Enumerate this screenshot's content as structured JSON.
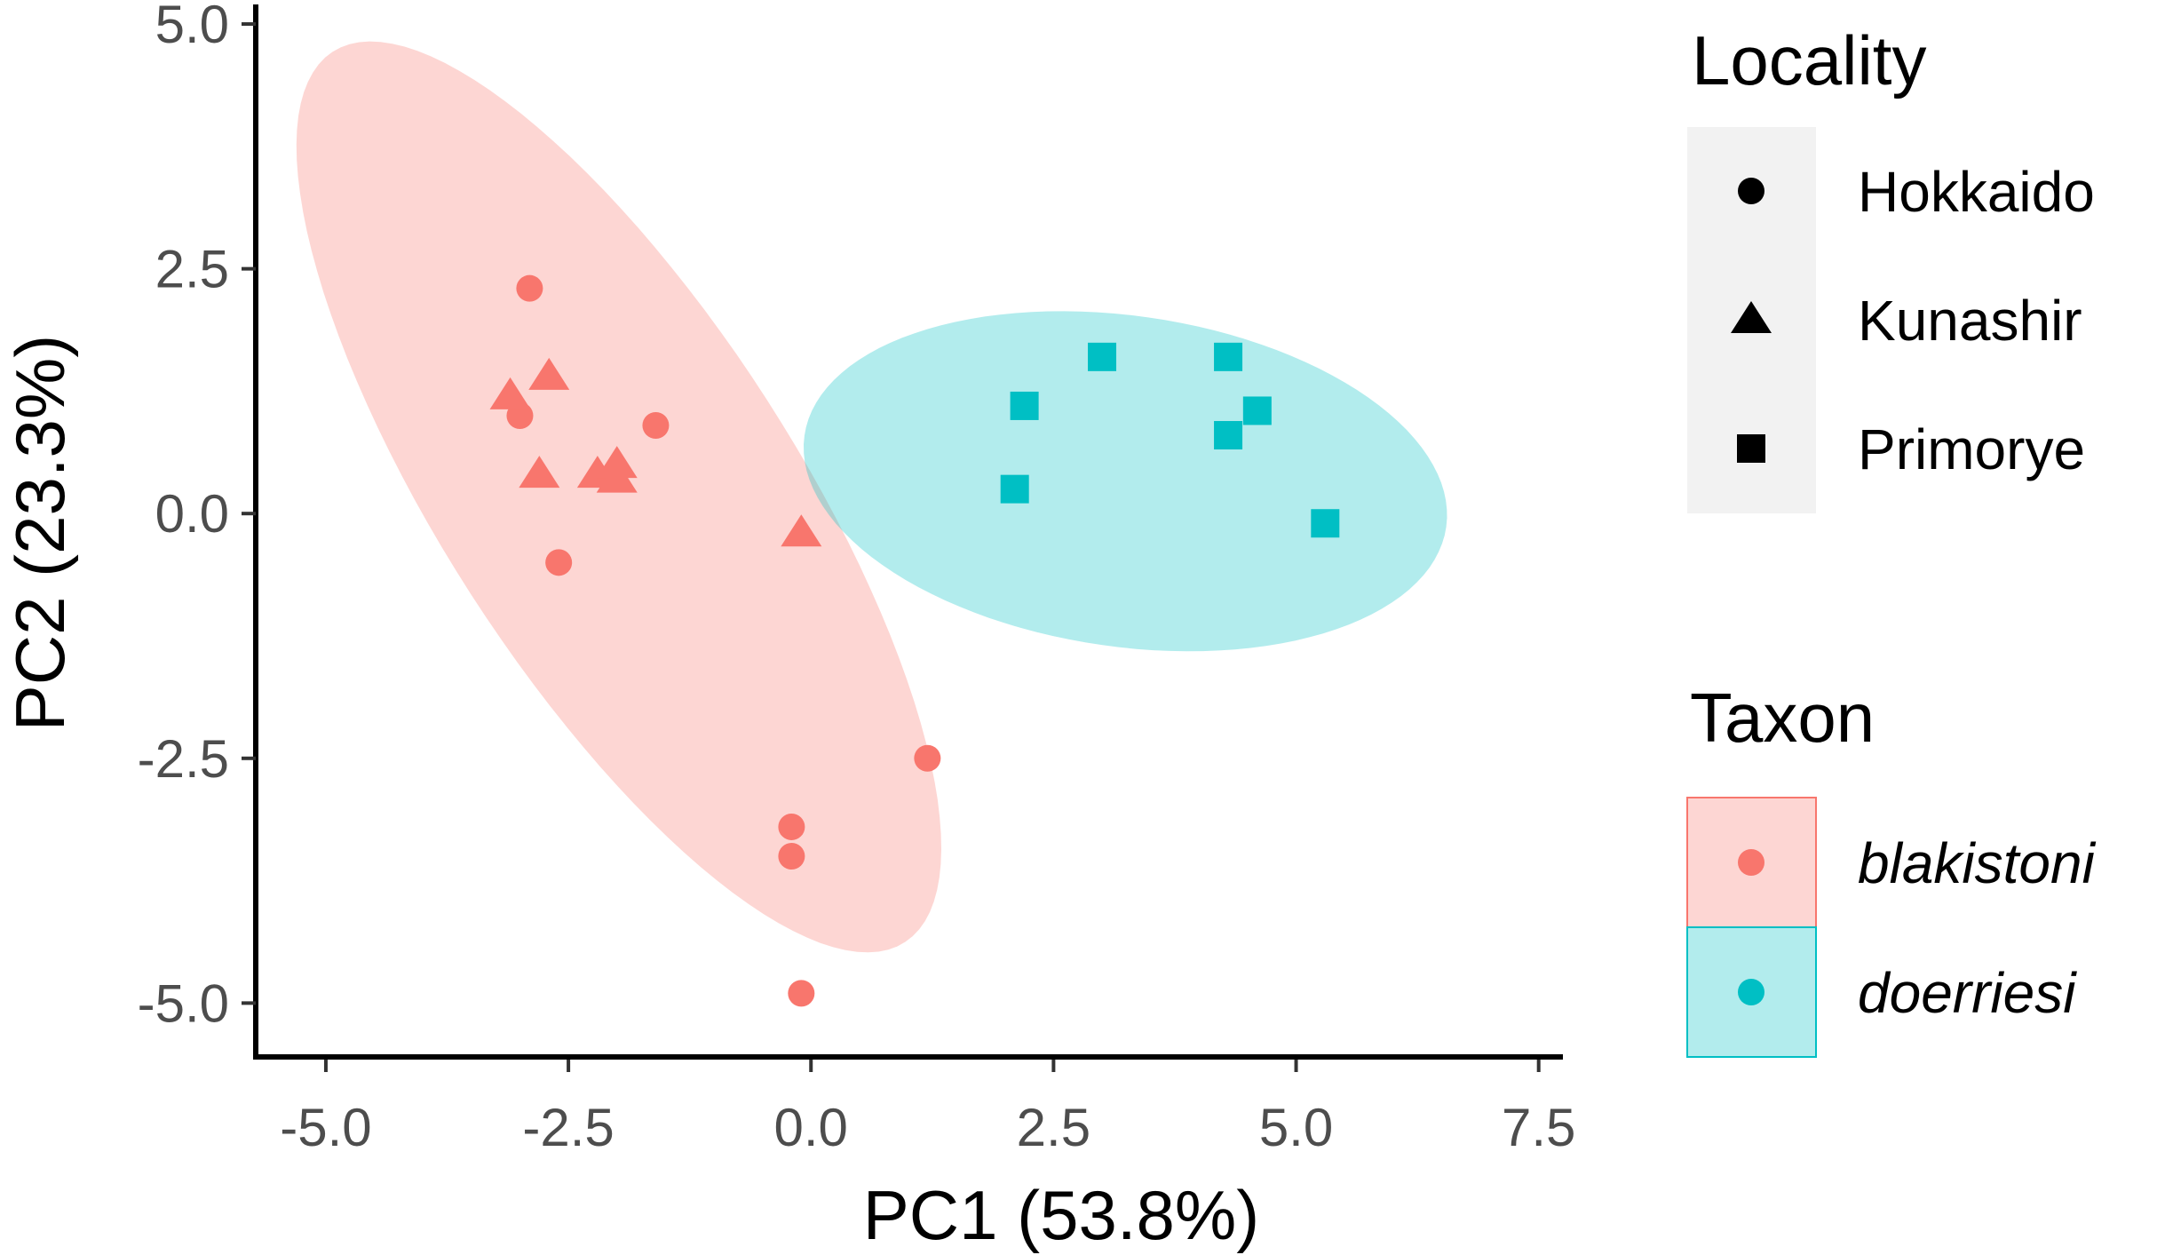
{
  "chart_data": {
    "type": "scatter",
    "xlabel": "PC1 (53.8%)",
    "ylabel": "PC2 (23.3%)",
    "xlim": [
      -5.75,
      7.75
    ],
    "ylim": [
      -5.55,
      5.2
    ],
    "xticks": [
      -5.0,
      -2.5,
      0.0,
      2.5,
      5.0,
      7.5
    ],
    "xtick_labels": [
      "-5.0",
      "-2.5",
      "0.0",
      "2.5",
      "5.0",
      "7.5"
    ],
    "yticks": [
      -5.0,
      -2.5,
      0.0,
      2.5,
      5.0
    ],
    "ytick_labels": [
      "-5.0",
      "-2.5",
      "0.0",
      "2.5",
      "5.0"
    ],
    "grid": false,
    "colors": {
      "blakistoni": "#F8766D",
      "doerriesi": "#00BFC4"
    },
    "shapes": {
      "Hokkaido": "circle",
      "Kunashir": "triangle",
      "Primorye": "square"
    },
    "ellipses": [
      {
        "taxon": "blakistoni",
        "center": [
          -1.98,
          0.17
        ],
        "semi_major": 5.42,
        "semi_minor": 1.82,
        "angle_deg": -57
      },
      {
        "taxon": "doerriesi",
        "center": [
          3.24,
          0.33
        ],
        "semi_major": 3.34,
        "semi_minor": 1.69,
        "angle_deg": -8
      }
    ],
    "series": [
      {
        "taxon": "blakistoni",
        "locality": "Hokkaido",
        "points": [
          [
            -2.9,
            2.3
          ],
          [
            -3.0,
            1.0
          ],
          [
            -1.6,
            0.9
          ],
          [
            -2.6,
            -0.5
          ],
          [
            1.2,
            -2.5
          ],
          [
            -0.2,
            -3.2
          ],
          [
            -0.2,
            -3.5
          ],
          [
            -0.1,
            -4.9
          ]
        ]
      },
      {
        "taxon": "blakistoni",
        "locality": "Kunashir",
        "points": [
          [
            -3.1,
            1.2
          ],
          [
            -2.7,
            1.4
          ],
          [
            -2.8,
            0.4
          ],
          [
            -2.2,
            0.4
          ],
          [
            -2.0,
            0.5
          ],
          [
            -2.0,
            0.35
          ],
          [
            -0.1,
            -0.2
          ]
        ]
      },
      {
        "taxon": "doerriesi",
        "locality": "Primorye",
        "points": [
          [
            3.0,
            1.6
          ],
          [
            2.2,
            1.1
          ],
          [
            2.1,
            0.25
          ],
          [
            4.3,
            1.6
          ],
          [
            4.6,
            1.05
          ],
          [
            4.3,
            0.8
          ],
          [
            5.3,
            -0.1
          ]
        ]
      }
    ]
  },
  "legend": {
    "locality_title": "Locality",
    "locality_items": [
      {
        "label": "Hokkaido",
        "shape": "circle"
      },
      {
        "label": "Kunashir",
        "shape": "triangle"
      },
      {
        "label": "Primorye",
        "shape": "square"
      }
    ],
    "taxon_title": "Taxon",
    "taxon_items": [
      {
        "label": "blakistoni",
        "color": "#F8766D"
      },
      {
        "label": "doerriesi",
        "color": "#00BFC4"
      }
    ]
  }
}
